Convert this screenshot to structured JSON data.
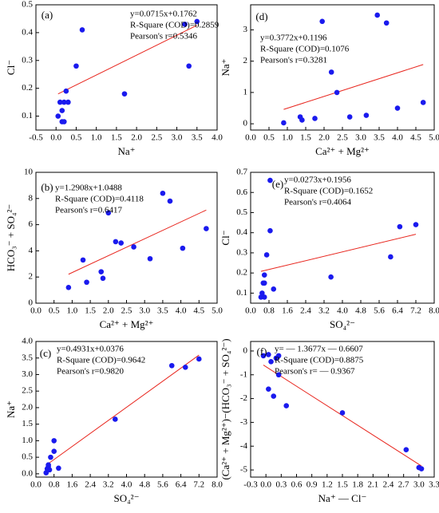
{
  "chart_data": [
    {
      "type": "scatter",
      "label": "(a)",
      "xlabel": "Na⁺",
      "ylabel": "Cl⁻",
      "color": "#1a1aee",
      "line_color": "#e8261e",
      "x": [
        0.05,
        0.15,
        0.2,
        0.15,
        0.2,
        0.25,
        0.3,
        0.1,
        0.5,
        0.65,
        1.7,
        3.2,
        3.3,
        3.5
      ],
      "values": [
        0.1,
        0.08,
        0.08,
        0.12,
        0.15,
        0.19,
        0.15,
        0.15,
        0.28,
        0.41,
        0.18,
        0.43,
        0.28,
        0.44
      ],
      "trendline": {
        "slope": 0.0715,
        "intercept": 0.1762
      },
      "annotations": [
        "y=0.0715x+0.1762",
        "R-Square (COD)=0.2859",
        "Pearson's r=0.5346"
      ],
      "xlim": [
        -0.5,
        4.0
      ],
      "xticks": [
        -0.5,
        {
          "value": 0,
          "label": "0.0"
        },
        0.5,
        {
          "value": 1,
          "label": "1.0"
        },
        1.5,
        {
          "value": 2,
          "label": "2.0"
        },
        2.5,
        {
          "value": 3,
          "label": "3.0"
        },
        3.5,
        {
          "value": 4,
          "label": "4.0"
        }
      ],
      "ylim": [
        0.05,
        0.5
      ],
      "yticks": [
        0.1,
        0.2,
        0.3,
        0.4,
        0.5
      ]
    },
    {
      "type": "scatter",
      "label": "(d)",
      "xlabel": "Ca²⁺ + Mg²⁺",
      "ylabel": "Na⁺",
      "color": "#1a1aee",
      "line_color": "#e8261e",
      "x": [
        0.9,
        1.35,
        1.4,
        1.75,
        1.95,
        2.2,
        2.35,
        2.7,
        3.15,
        3.45,
        3.7,
        4.0,
        4.7
      ],
      "values": [
        0.03,
        0.22,
        0.12,
        0.17,
        3.27,
        1.65,
        1.0,
        0.22,
        0.27,
        3.47,
        3.22,
        0.5,
        0.68
      ],
      "trendline": {
        "slope": 0.3772,
        "intercept": 0.1196
      },
      "annotations": [
        "y=0.3772x+0.1196",
        "R-Square (COD)=0.1076",
        "Pearson's r=0.3281"
      ],
      "xlim": [
        0,
        5
      ],
      "xticks": [
        {
          "value": 0,
          "label": "0.0"
        },
        0.5,
        {
          "value": 1,
          "label": "1.0"
        },
        1.5,
        {
          "value": 2,
          "label": "2.0"
        },
        2.5,
        {
          "value": 3,
          "label": "3.0"
        },
        3.5,
        {
          "value": 4,
          "label": "4.0"
        },
        4.5,
        {
          "value": 5,
          "label": "5.0"
        }
      ],
      "ylim": [
        -0.2,
        3.8
      ],
      "yticks": [
        0,
        1,
        2,
        3
      ]
    },
    {
      "type": "scatter",
      "label": "(b)",
      "xlabel": "Ca²⁺ + Mg²⁺",
      "ylabel": "HCO₃⁻ + SO₄²⁻",
      "color": "#1a1aee",
      "line_color": "#e8261e",
      "x": [
        0.9,
        1.3,
        1.4,
        1.8,
        1.85,
        2.0,
        2.2,
        2.35,
        2.7,
        3.15,
        3.5,
        3.7,
        4.05,
        4.7
      ],
      "values": [
        1.2,
        3.3,
        1.6,
        2.4,
        1.9,
        6.9,
        4.7,
        4.6,
        4.3,
        3.4,
        8.4,
        7.8,
        4.2,
        5.7
      ],
      "trendline": {
        "slope": 1.2908,
        "intercept": 1.0488
      },
      "annotations": [
        "y=1.2908x+1.0488",
        "R-Square (COD)=0.4118",
        "Pearson's r=0.6417"
      ],
      "xlim": [
        0,
        5
      ],
      "xticks": [
        {
          "value": 0,
          "label": "0.0"
        },
        0.5,
        {
          "value": 1,
          "label": "1.0"
        },
        1.5,
        {
          "value": 2,
          "label": "2.0"
        },
        2.5,
        {
          "value": 3,
          "label": "3.0"
        },
        3.5,
        {
          "value": 4,
          "label": "4.0"
        },
        4.5,
        {
          "value": 5,
          "label": "5.0"
        }
      ],
      "ylim": [
        0,
        10
      ],
      "yticks": [
        0,
        2,
        4,
        6,
        8,
        10
      ]
    },
    {
      "type": "scatter",
      "label": "(e)",
      "xlabel": "SO₄²⁻",
      "ylabel": "Cl⁻",
      "color": "#1a1aee",
      "line_color": "#e8261e",
      "x": [
        0.45,
        0.5,
        0.55,
        0.6,
        0.6,
        0.7,
        0.6,
        0.85,
        0.85,
        1.0,
        3.5,
        6.1,
        6.5,
        7.2
      ],
      "values": [
        0.08,
        0.1,
        0.15,
        0.15,
        0.19,
        0.29,
        0.08,
        0.66,
        0.41,
        0.12,
        0.18,
        0.28,
        0.43,
        0.44
      ],
      "trendline": {
        "slope": 0.0273,
        "intercept": 0.1956
      },
      "annotations": [
        "y=0.0273x+0.1956",
        "R-Square (COD)=0.1652",
        "Pearson's r=0.4064"
      ],
      "xlim": [
        0,
        8
      ],
      "xticks": [
        {
          "value": 0,
          "label": "0.0"
        },
        0.8,
        1.6,
        2.4,
        3.2,
        {
          "value": 4,
          "label": "4.0"
        },
        4.8,
        5.6,
        6.4,
        7.2,
        {
          "value": 8,
          "label": "8.0"
        }
      ],
      "ylim": [
        0.05,
        0.7
      ],
      "yticks": [
        0.1,
        0.2,
        0.3,
        0.4,
        0.5,
        0.6,
        0.7
      ]
    },
    {
      "type": "scatter",
      "label": "(c)",
      "xlabel": "SO₄²⁻",
      "ylabel": "Na⁺",
      "color": "#1a1aee",
      "line_color": "#e8261e",
      "x": [
        0.45,
        0.5,
        0.55,
        0.6,
        0.65,
        0.8,
        0.8,
        1.0,
        0.55,
        3.5,
        6.0,
        6.6,
        7.2
      ],
      "values": [
        0.03,
        0.15,
        0.22,
        0.12,
        0.5,
        0.68,
        1.0,
        0.17,
        0.27,
        1.65,
        3.27,
        3.22,
        3.47
      ],
      "trendline": {
        "slope": 0.4931,
        "intercept": 0.0376
      },
      "annotations": [
        "y=0.4931x+0.0376",
        "R-Square (COD)=0.9642",
        "Pearson's r=0.9820"
      ],
      "xlim": [
        0,
        8
      ],
      "xticks": [
        {
          "value": 0,
          "label": "0.0"
        },
        0.8,
        1.6,
        2.4,
        3.2,
        {
          "value": 4,
          "label": "4.0"
        },
        4.8,
        5.6,
        6.4,
        7.2,
        {
          "value": 8,
          "label": "8.0"
        }
      ],
      "ylim": [
        -0.1,
        4
      ],
      "yticks": [
        {
          "value": 0,
          "label": "0.0"
        },
        0.5,
        {
          "value": 1,
          "label": "1.0"
        },
        1.5,
        {
          "value": 2,
          "label": "2.0"
        },
        2.5,
        {
          "value": 3,
          "label": "3.0"
        },
        3.5,
        {
          "value": 4,
          "label": "4.0"
        }
      ]
    },
    {
      "type": "scatter",
      "label": "(f)",
      "xlabel": "Na⁺ — Cl⁻",
      "ylabel": "(Ca²⁺ + Mg²⁺)−(HCO₃⁻ + SO₄²⁻)",
      "color": "#1a1aee",
      "line_color": "#e8261e",
      "x": [
        -0.05,
        0.05,
        0.1,
        0.05,
        0.15,
        0.2,
        0.25,
        0.25,
        0.4,
        1.5,
        2.75,
        3.0,
        3.05
      ],
      "values": [
        -0.2,
        -0.15,
        -0.45,
        -1.6,
        -1.9,
        -0.3,
        -0.2,
        -1.0,
        -2.3,
        -2.6,
        -4.15,
        -4.9,
        -4.95
      ],
      "trendline": {
        "slope": -1.3677,
        "intercept": -0.6607
      },
      "annotations": [
        "y= — 1.3677x — 0.6607",
        "R-Square (COD)=0.8875",
        "Pearson's r= — 0.9367"
      ],
      "xlim": [
        -0.3,
        3.3
      ],
      "xticks": [
        -0.3,
        {
          "value": 0,
          "label": "0.0"
        },
        0.3,
        0.6,
        0.9,
        1.2,
        1.5,
        1.8,
        2.1,
        2.4,
        2.7,
        {
          "value": 3,
          "label": "3.0"
        },
        3.3
      ],
      "ylim": [
        -5.3,
        0.4
      ],
      "yticks": [
        0,
        -1,
        -2,
        -3,
        -4,
        -5
      ]
    }
  ]
}
